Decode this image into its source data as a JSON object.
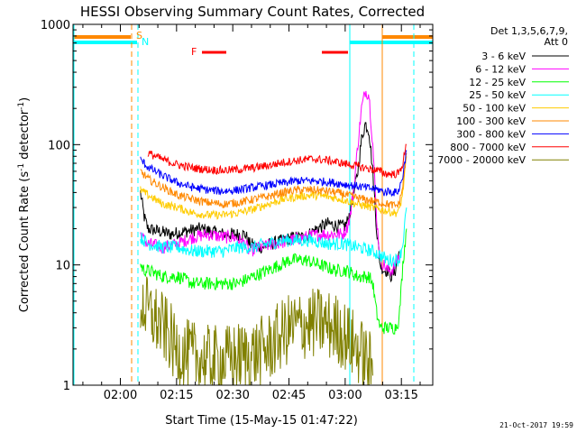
{
  "chart_data": {
    "type": "line",
    "title": "HESSI Observing Summary Count Rates, Corrected",
    "xlabel": "Start Time (15-May-15 01:47:22)",
    "ylabel_parts": [
      "Corrected Count Rate (s",
      "-1",
      " detector",
      "-1",
      ")"
    ],
    "y_scale": "log",
    "ylim": [
      1,
      1000
    ],
    "xlim_minutes": [
      0,
      96
    ],
    "x_ticks": [
      {
        "label": "02:00",
        "min": 12.63
      },
      {
        "label": "02:15",
        "min": 27.63
      },
      {
        "label": "02:30",
        "min": 42.63
      },
      {
        "label": "02:45",
        "min": 57.63
      },
      {
        "label": "03:00",
        "min": 72.63
      },
      {
        "label": "03:15",
        "min": 87.63
      }
    ],
    "y_ticks": [
      {
        "label": "1",
        "value": 1
      },
      {
        "label": "10",
        "value": 10
      },
      {
        "label": "100",
        "value": 100
      },
      {
        "label": "1000",
        "value": 1000
      }
    ],
    "legend": {
      "placement": "top-right",
      "header": [
        "Det 1,3,5,6,7,9,",
        "Att 0"
      ]
    },
    "series": [
      {
        "name": "3 - 6 keV",
        "color": "#000000",
        "points": [
          [
            18,
            40
          ],
          [
            19,
            25
          ],
          [
            20,
            20
          ],
          [
            23,
            19
          ],
          [
            26,
            18
          ],
          [
            30,
            19
          ],
          [
            34,
            20
          ],
          [
            37,
            19
          ],
          [
            40,
            18
          ],
          [
            43,
            18
          ],
          [
            46,
            18
          ],
          [
            47,
            15
          ],
          [
            50,
            14
          ],
          [
            53,
            15
          ],
          [
            56,
            16
          ],
          [
            59,
            17
          ],
          [
            62,
            17
          ],
          [
            65,
            20
          ],
          [
            68,
            22
          ],
          [
            71,
            21
          ],
          [
            72.5,
            21
          ],
          [
            73,
            22
          ],
          [
            74,
            28
          ],
          [
            75,
            40
          ],
          [
            76,
            60
          ],
          [
            77,
            110
          ],
          [
            78,
            150
          ],
          [
            79,
            130
          ],
          [
            80,
            60
          ],
          [
            81,
            20
          ],
          [
            82,
            10
          ],
          [
            83,
            9
          ],
          [
            84,
            9
          ],
          [
            85,
            8
          ],
          [
            86,
            9
          ],
          [
            87,
            13
          ]
        ]
      },
      {
        "name": "6 - 12 keV",
        "color": "#ff00ff",
        "points": [
          [
            18,
            18
          ],
          [
            19,
            16
          ],
          [
            20,
            15
          ],
          [
            24,
            14
          ],
          [
            28,
            15
          ],
          [
            32,
            17
          ],
          [
            36,
            18
          ],
          [
            40,
            17
          ],
          [
            43,
            17
          ],
          [
            46,
            15
          ],
          [
            47,
            13
          ],
          [
            50,
            14
          ],
          [
            54,
            15
          ],
          [
            58,
            16
          ],
          [
            62,
            17
          ],
          [
            66,
            18
          ],
          [
            69,
            18
          ],
          [
            72,
            18
          ],
          [
            73,
            20
          ],
          [
            74,
            26
          ],
          [
            75,
            45
          ],
          [
            76,
            100
          ],
          [
            77,
            200
          ],
          [
            78,
            280
          ],
          [
            79,
            260
          ],
          [
            80,
            100
          ],
          [
            81,
            25
          ],
          [
            82,
            11
          ],
          [
            83,
            10
          ],
          [
            84,
            9
          ],
          [
            85,
            9
          ],
          [
            86,
            10
          ],
          [
            87,
            12
          ]
        ]
      },
      {
        "name": "12 - 25 keV",
        "color": "#00ff00",
        "points": [
          [
            18,
            10
          ],
          [
            19,
            9
          ],
          [
            20,
            9
          ],
          [
            24,
            8
          ],
          [
            28,
            8
          ],
          [
            32,
            7
          ],
          [
            36,
            7
          ],
          [
            40,
            7
          ],
          [
            44,
            7
          ],
          [
            48,
            8
          ],
          [
            52,
            9
          ],
          [
            55,
            10
          ],
          [
            58,
            11
          ],
          [
            62,
            11
          ],
          [
            66,
            10
          ],
          [
            70,
            9
          ],
          [
            73,
            9
          ],
          [
            76,
            8
          ],
          [
            79,
            8
          ],
          [
            80,
            7
          ],
          [
            81,
            4
          ],
          [
            82,
            3
          ],
          [
            84,
            3
          ],
          [
            86,
            3
          ],
          [
            87,
            3.5
          ],
          [
            88,
            10
          ],
          [
            89,
            20
          ]
        ]
      },
      {
        "name": "25 - 50 keV",
        "color": "#00ffff",
        "points": [
          [
            18,
            17
          ],
          [
            20,
            15
          ],
          [
            24,
            14
          ],
          [
            28,
            14
          ],
          [
            32,
            13
          ],
          [
            36,
            13
          ],
          [
            40,
            13
          ],
          [
            44,
            14
          ],
          [
            48,
            14
          ],
          [
            52,
            15
          ],
          [
            56,
            16
          ],
          [
            60,
            16
          ],
          [
            64,
            16
          ],
          [
            68,
            15
          ],
          [
            72,
            15
          ],
          [
            76,
            14
          ],
          [
            80,
            13
          ],
          [
            82,
            12
          ],
          [
            84,
            11
          ],
          [
            86,
            11
          ],
          [
            87,
            11
          ],
          [
            88,
            15
          ],
          [
            89,
            30
          ]
        ]
      },
      {
        "name": "50 - 100 keV",
        "color": "#ffcc00",
        "points": [
          [
            18,
            42
          ],
          [
            20,
            38
          ],
          [
            24,
            32
          ],
          [
            28,
            30
          ],
          [
            32,
            27
          ],
          [
            36,
            26
          ],
          [
            40,
            26
          ],
          [
            44,
            27
          ],
          [
            48,
            29
          ],
          [
            52,
            32
          ],
          [
            56,
            35
          ],
          [
            60,
            37
          ],
          [
            64,
            38
          ],
          [
            68,
            37
          ],
          [
            72,
            35
          ],
          [
            76,
            32
          ],
          [
            80,
            30
          ],
          [
            84,
            28
          ],
          [
            86,
            27
          ],
          [
            87,
            28
          ],
          [
            88,
            40
          ],
          [
            89,
            80
          ]
        ]
      },
      {
        "name": "100 - 300 keV",
        "color": "#ff8800",
        "points": [
          [
            18,
            60
          ],
          [
            20,
            52
          ],
          [
            24,
            44
          ],
          [
            28,
            38
          ],
          [
            32,
            35
          ],
          [
            36,
            33
          ],
          [
            40,
            32
          ],
          [
            44,
            33
          ],
          [
            48,
            35
          ],
          [
            52,
            37
          ],
          [
            56,
            40
          ],
          [
            60,
            42
          ],
          [
            64,
            42
          ],
          [
            68,
            41
          ],
          [
            72,
            39
          ],
          [
            76,
            36
          ],
          [
            80,
            34
          ],
          [
            84,
            32
          ],
          [
            86,
            31
          ],
          [
            87,
            32
          ],
          [
            88,
            45
          ],
          [
            89,
            85
          ]
        ]
      },
      {
        "name": "300 - 800 keV",
        "color": "#0000ff",
        "points": [
          [
            18,
            75
          ],
          [
            20,
            65
          ],
          [
            24,
            55
          ],
          [
            28,
            48
          ],
          [
            32,
            44
          ],
          [
            36,
            42
          ],
          [
            40,
            41
          ],
          [
            44,
            42
          ],
          [
            48,
            44
          ],
          [
            52,
            46
          ],
          [
            56,
            48
          ],
          [
            60,
            50
          ],
          [
            64,
            50
          ],
          [
            68,
            49
          ],
          [
            72,
            47
          ],
          [
            76,
            45
          ],
          [
            80,
            43
          ],
          [
            82,
            42
          ],
          [
            83,
            40
          ],
          [
            84,
            41
          ],
          [
            86,
            40
          ],
          [
            87,
            42
          ],
          [
            88,
            55
          ],
          [
            89,
            90
          ]
        ]
      },
      {
        "name": "800 - 7000 keV",
        "color": "#ff0000",
        "points": [
          [
            20,
            85
          ],
          [
            22,
            80
          ],
          [
            24,
            75
          ],
          [
            28,
            68
          ],
          [
            32,
            64
          ],
          [
            36,
            62
          ],
          [
            40,
            61
          ],
          [
            44,
            62
          ],
          [
            48,
            64
          ],
          [
            52,
            67
          ],
          [
            56,
            71
          ],
          [
            60,
            74
          ],
          [
            64,
            76
          ],
          [
            68,
            74
          ],
          [
            72,
            70
          ],
          [
            76,
            66
          ],
          [
            80,
            62
          ],
          [
            82,
            60
          ],
          [
            83,
            58
          ],
          [
            84,
            57
          ],
          [
            86,
            57
          ],
          [
            87,
            58
          ],
          [
            88,
            70
          ],
          [
            89,
            100
          ]
        ]
      },
      {
        "name": "7000 - 20000 keV",
        "color": "#808000",
        "points": [
          [
            18,
            5
          ],
          [
            19,
            4.5
          ],
          [
            20,
            4
          ],
          [
            22,
            3.5
          ],
          [
            24,
            3
          ],
          [
            26,
            2.5
          ],
          [
            27,
            2
          ],
          [
            30,
            1.8
          ],
          [
            33,
            1.7
          ],
          [
            36,
            1.6
          ],
          [
            40,
            1.6
          ],
          [
            44,
            1.7
          ],
          [
            48,
            1.8
          ],
          [
            52,
            2
          ],
          [
            55,
            2.5
          ],
          [
            58,
            3
          ],
          [
            62,
            3.2
          ],
          [
            66,
            3.3
          ],
          [
            70,
            3
          ],
          [
            73,
            2.5
          ],
          [
            76,
            2
          ],
          [
            79,
            1.5
          ],
          [
            80,
            1.2
          ]
        ]
      }
    ],
    "markers": [
      {
        "label": "S",
        "color": "#ff8800"
      },
      {
        "label": "N",
        "color": "#00ffff"
      },
      {
        "label": "F",
        "color": "#ff0000"
      }
    ],
    "timestamp": "21-Oct-2017 19:59"
  },
  "colors": {
    "saa": "#ff8800",
    "night": "#00ffff",
    "flare": "#ff0000"
  }
}
